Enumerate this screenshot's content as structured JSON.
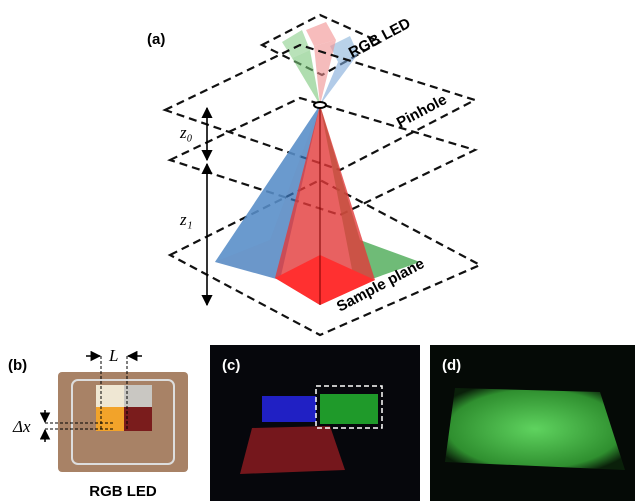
{
  "panels": {
    "a": {
      "label": "(a)",
      "source_label": "RGB LED",
      "pinhole_label": "Pinhole",
      "z0_label": "z₀",
      "z1_label": "z₁",
      "sample_label": "Sample plane"
    },
    "b": {
      "label": "(b)",
      "width_label": "L",
      "offset_label": "Δx",
      "caption": "RGB LED"
    },
    "c": {
      "label": "(c)"
    },
    "d": {
      "label": "(d)"
    }
  }
}
